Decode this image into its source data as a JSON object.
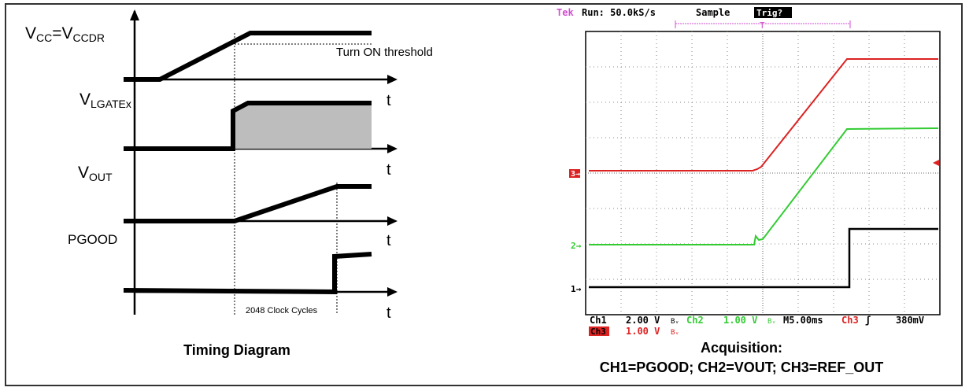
{
  "timing": {
    "vcc_main": "V",
    "vcc_sub1": "CC",
    "vcc_eq": "=V",
    "vcc_sub2": "CCDR",
    "vlgate_main": "V",
    "vlgate_sub": "LGATEx",
    "vout_main": "V",
    "vout_sub": "OUT",
    "pgood": "PGOOD",
    "t": "t",
    "threshold": "Turn ON threshold",
    "clock_cycles": "2048 Clock Cycles",
    "caption": "Timing Diagram"
  },
  "scope": {
    "brand": "Tek",
    "run": "Run: 50.0kS/s",
    "mode": "Sample",
    "trig": "Trig?",
    "trig_marker": "T",
    "ch1_marker": "1",
    "ch2_marker": "2",
    "ch3_marker": "3",
    "ch1_label": "Ch1",
    "ch1_scale": "2.00 V",
    "ch2_label": "Ch2",
    "ch2_scale": "1.00 V",
    "timebase": "M5.00ms",
    "trig_ch": "Ch3",
    "trig_level": "380mV",
    "ch3_label": "Ch3",
    "ch3_scale": "1.00 V",
    "caption_line1": "Acquisition:",
    "caption_line2": "CH1=PGOOD; CH2=VOUT; CH3=REF_OUT",
    "colors": {
      "ch1": "#000000",
      "ch2": "#33cc33",
      "ch3": "#dd2222",
      "tek": "#d04fd0"
    }
  }
}
